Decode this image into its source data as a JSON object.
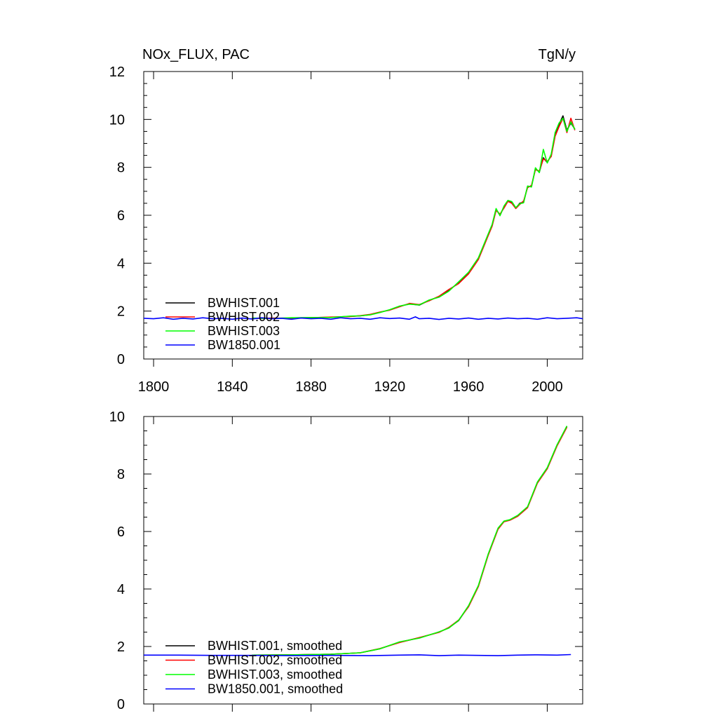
{
  "chart_data": [
    {
      "type": "line",
      "title_left": "NOx_FLUX, PAC",
      "title_right": "TgN/y",
      "xlabel": "",
      "ylabel": "",
      "xlim": [
        1795,
        2018
      ],
      "ylim": [
        0,
        12
      ],
      "xticks": [
        1800,
        1840,
        1880,
        1920,
        1960,
        2000
      ],
      "yticks": [
        0,
        2,
        4,
        6,
        8,
        10,
        12
      ],
      "x_tick_labels_shown": true,
      "grid": false,
      "legend_position": "bottom-left",
      "series": [
        {
          "name": "BWHIST.001",
          "color": "#000000",
          "points": [
            [
              1850,
              1.7
            ],
            [
              1860,
              1.7
            ],
            [
              1870,
              1.71
            ],
            [
              1880,
              1.73
            ],
            [
              1890,
              1.74
            ],
            [
              1900,
              1.78
            ],
            [
              1905,
              1.8
            ],
            [
              1910,
              1.85
            ],
            [
              1915,
              1.95
            ],
            [
              1920,
              2.05
            ],
            [
              1925,
              2.2
            ],
            [
              1930,
              2.3
            ],
            [
              1935,
              2.25
            ],
            [
              1940,
              2.45
            ],
            [
              1945,
              2.6
            ],
            [
              1950,
              2.85
            ],
            [
              1955,
              3.2
            ],
            [
              1960,
              3.6
            ],
            [
              1965,
              4.2
            ],
            [
              1970,
              5.2
            ],
            [
              1972,
              5.6
            ],
            [
              1974,
              6.25
            ],
            [
              1976,
              6.0
            ],
            [
              1978,
              6.35
            ],
            [
              1980,
              6.6
            ],
            [
              1982,
              6.55
            ],
            [
              1984,
              6.3
            ],
            [
              1986,
              6.5
            ],
            [
              1988,
              6.55
            ],
            [
              1990,
              7.2
            ],
            [
              1992,
              7.2
            ],
            [
              1994,
              7.95
            ],
            [
              1996,
              7.8
            ],
            [
              1998,
              8.4
            ],
            [
              2000,
              8.2
            ],
            [
              2002,
              8.5
            ],
            [
              2004,
              9.4
            ],
            [
              2006,
              9.8
            ],
            [
              2008,
              10.15
            ],
            [
              2010,
              9.55
            ],
            [
              2012,
              9.85
            ],
            [
              2014,
              9.6
            ]
          ]
        },
        {
          "name": "BWHIST.002",
          "color": "#ff0000",
          "points": [
            [
              1850,
              1.69
            ],
            [
              1860,
              1.71
            ],
            [
              1870,
              1.7
            ],
            [
              1880,
              1.72
            ],
            [
              1890,
              1.75
            ],
            [
              1900,
              1.77
            ],
            [
              1905,
              1.81
            ],
            [
              1910,
              1.86
            ],
            [
              1915,
              1.96
            ],
            [
              1920,
              2.04
            ],
            [
              1925,
              2.18
            ],
            [
              1930,
              2.32
            ],
            [
              1935,
              2.27
            ],
            [
              1940,
              2.43
            ],
            [
              1945,
              2.62
            ],
            [
              1950,
              2.9
            ],
            [
              1955,
              3.15
            ],
            [
              1960,
              3.55
            ],
            [
              1965,
              4.15
            ],
            [
              1970,
              5.15
            ],
            [
              1972,
              5.55
            ],
            [
              1974,
              6.2
            ],
            [
              1976,
              6.05
            ],
            [
              1978,
              6.3
            ],
            [
              1980,
              6.58
            ],
            [
              1982,
              6.5
            ],
            [
              1984,
              6.28
            ],
            [
              1986,
              6.45
            ],
            [
              1988,
              6.6
            ],
            [
              1990,
              7.15
            ],
            [
              1992,
              7.25
            ],
            [
              1994,
              7.9
            ],
            [
              1996,
              7.85
            ],
            [
              1998,
              8.35
            ],
            [
              2000,
              8.25
            ],
            [
              2002,
              8.45
            ],
            [
              2004,
              9.3
            ],
            [
              2006,
              9.7
            ],
            [
              2008,
              10.05
            ],
            [
              2010,
              9.45
            ],
            [
              2012,
              10.05
            ],
            [
              2014,
              9.55
            ]
          ]
        },
        {
          "name": "BWHIST.003",
          "color": "#00ff00",
          "points": [
            [
              1850,
              1.71
            ],
            [
              1860,
              1.69
            ],
            [
              1870,
              1.72
            ],
            [
              1880,
              1.73
            ],
            [
              1890,
              1.73
            ],
            [
              1900,
              1.79
            ],
            [
              1905,
              1.8
            ],
            [
              1910,
              1.84
            ],
            [
              1915,
              1.94
            ],
            [
              1920,
              2.06
            ],
            [
              1925,
              2.21
            ],
            [
              1930,
              2.29
            ],
            [
              1935,
              2.26
            ],
            [
              1940,
              2.46
            ],
            [
              1945,
              2.58
            ],
            [
              1950,
              2.83
            ],
            [
              1955,
              3.22
            ],
            [
              1960,
              3.62
            ],
            [
              1965,
              4.22
            ],
            [
              1970,
              5.22
            ],
            [
              1972,
              5.62
            ],
            [
              1974,
              6.28
            ],
            [
              1976,
              5.98
            ],
            [
              1978,
              6.38
            ],
            [
              1980,
              6.62
            ],
            [
              1982,
              6.57
            ],
            [
              1984,
              6.32
            ],
            [
              1986,
              6.48
            ],
            [
              1988,
              6.52
            ],
            [
              1990,
              7.22
            ],
            [
              1992,
              7.18
            ],
            [
              1994,
              7.98
            ],
            [
              1996,
              7.78
            ],
            [
              1998,
              8.75
            ],
            [
              2000,
              8.18
            ],
            [
              2002,
              8.55
            ],
            [
              2004,
              9.45
            ],
            [
              2006,
              9.85
            ],
            [
              2008,
              10.05
            ],
            [
              2010,
              9.5
            ],
            [
              2012,
              9.9
            ],
            [
              2014,
              9.58
            ]
          ]
        },
        {
          "name": "BW1850.001",
          "color": "#0000ff",
          "points": [
            [
              1795,
              1.7
            ],
            [
              1800,
              1.68
            ],
            [
              1805,
              1.72
            ],
            [
              1810,
              1.66
            ],
            [
              1815,
              1.7
            ],
            [
              1820,
              1.67
            ],
            [
              1825,
              1.72
            ],
            [
              1830,
              1.68
            ],
            [
              1835,
              1.7
            ],
            [
              1840,
              1.66
            ],
            [
              1845,
              1.71
            ],
            [
              1850,
              1.67
            ],
            [
              1855,
              1.72
            ],
            [
              1860,
              1.68
            ],
            [
              1865,
              1.7
            ],
            [
              1870,
              1.66
            ],
            [
              1875,
              1.71
            ],
            [
              1880,
              1.68
            ],
            [
              1885,
              1.7
            ],
            [
              1890,
              1.66
            ],
            [
              1895,
              1.72
            ],
            [
              1900,
              1.68
            ],
            [
              1905,
              1.7
            ],
            [
              1910,
              1.66
            ],
            [
              1915,
              1.72
            ],
            [
              1920,
              1.69
            ],
            [
              1925,
              1.71
            ],
            [
              1930,
              1.66
            ],
            [
              1933,
              1.76
            ],
            [
              1935,
              1.68
            ],
            [
              1940,
              1.7
            ],
            [
              1945,
              1.65
            ],
            [
              1950,
              1.7
            ],
            [
              1955,
              1.67
            ],
            [
              1960,
              1.71
            ],
            [
              1965,
              1.66
            ],
            [
              1970,
              1.7
            ],
            [
              1975,
              1.67
            ],
            [
              1980,
              1.71
            ],
            [
              1985,
              1.68
            ],
            [
              1990,
              1.7
            ],
            [
              1995,
              1.66
            ],
            [
              2000,
              1.72
            ],
            [
              2005,
              1.68
            ],
            [
              2010,
              1.7
            ],
            [
              2015,
              1.72
            ],
            [
              2018,
              1.68
            ]
          ]
        }
      ]
    },
    {
      "type": "line",
      "title_left": "",
      "title_right": "",
      "xlabel": "",
      "ylabel": "",
      "xlim": [
        1795,
        2018
      ],
      "ylim": [
        0,
        10
      ],
      "xticks": [
        1800,
        1840,
        1880,
        1920,
        1960,
        2000
      ],
      "yticks": [
        0,
        2,
        4,
        6,
        8,
        10
      ],
      "x_tick_labels_shown": false,
      "grid": false,
      "legend_position": "bottom-left",
      "series": [
        {
          "name": "BWHIST.001, smoothed",
          "color": "#000000",
          "points": [
            [
              1850,
              1.7
            ],
            [
              1870,
              1.71
            ],
            [
              1890,
              1.73
            ],
            [
              1905,
              1.78
            ],
            [
              1915,
              1.92
            ],
            [
              1925,
              2.15
            ],
            [
              1935,
              2.3
            ],
            [
              1945,
              2.5
            ],
            [
              1950,
              2.65
            ],
            [
              1955,
              2.9
            ],
            [
              1960,
              3.4
            ],
            [
              1965,
              4.1
            ],
            [
              1970,
              5.2
            ],
            [
              1975,
              6.1
            ],
            [
              1978,
              6.35
            ],
            [
              1981,
              6.4
            ],
            [
              1985,
              6.55
            ],
            [
              1990,
              6.85
            ],
            [
              1995,
              7.7
            ],
            [
              2000,
              8.2
            ],
            [
              2005,
              9.0
            ],
            [
              2010,
              9.65
            ]
          ]
        },
        {
          "name": "BWHIST.002, smoothed",
          "color": "#ff0000",
          "points": [
            [
              1850,
              1.7
            ],
            [
              1870,
              1.71
            ],
            [
              1890,
              1.73
            ],
            [
              1905,
              1.78
            ],
            [
              1915,
              1.93
            ],
            [
              1925,
              2.14
            ],
            [
              1935,
              2.31
            ],
            [
              1945,
              2.49
            ],
            [
              1950,
              2.66
            ],
            [
              1955,
              2.92
            ],
            [
              1960,
              3.38
            ],
            [
              1965,
              4.08
            ],
            [
              1970,
              5.18
            ],
            [
              1975,
              6.08
            ],
            [
              1978,
              6.34
            ],
            [
              1981,
              6.39
            ],
            [
              1985,
              6.53
            ],
            [
              1990,
              6.83
            ],
            [
              1995,
              7.68
            ],
            [
              2000,
              8.18
            ],
            [
              2005,
              8.98
            ],
            [
              2010,
              9.63
            ]
          ]
        },
        {
          "name": "BWHIST.003, smoothed",
          "color": "#00ff00",
          "points": [
            [
              1850,
              1.7
            ],
            [
              1870,
              1.71
            ],
            [
              1890,
              1.73
            ],
            [
              1905,
              1.78
            ],
            [
              1915,
              1.92
            ],
            [
              1925,
              2.16
            ],
            [
              1935,
              2.29
            ],
            [
              1945,
              2.51
            ],
            [
              1950,
              2.64
            ],
            [
              1955,
              2.91
            ],
            [
              1960,
              3.42
            ],
            [
              1965,
              4.12
            ],
            [
              1970,
              5.22
            ],
            [
              1975,
              6.12
            ],
            [
              1978,
              6.36
            ],
            [
              1981,
              6.41
            ],
            [
              1985,
              6.56
            ],
            [
              1990,
              6.86
            ],
            [
              1995,
              7.72
            ],
            [
              2000,
              8.22
            ],
            [
              2005,
              9.02
            ],
            [
              2010,
              9.67
            ]
          ]
        },
        {
          "name": "BW1850.001, smoothed",
          "color": "#0000ff",
          "points": [
            [
              1795,
              1.7
            ],
            [
              1810,
              1.7
            ],
            [
              1830,
              1.69
            ],
            [
              1850,
              1.69
            ],
            [
              1870,
              1.68
            ],
            [
              1890,
              1.69
            ],
            [
              1910,
              1.68
            ],
            [
              1925,
              1.7
            ],
            [
              1935,
              1.71
            ],
            [
              1945,
              1.68
            ],
            [
              1955,
              1.7
            ],
            [
              1965,
              1.69
            ],
            [
              1975,
              1.68
            ],
            [
              1985,
              1.7
            ],
            [
              1995,
              1.71
            ],
            [
              2005,
              1.7
            ],
            [
              2012,
              1.72
            ]
          ]
        }
      ]
    }
  ]
}
